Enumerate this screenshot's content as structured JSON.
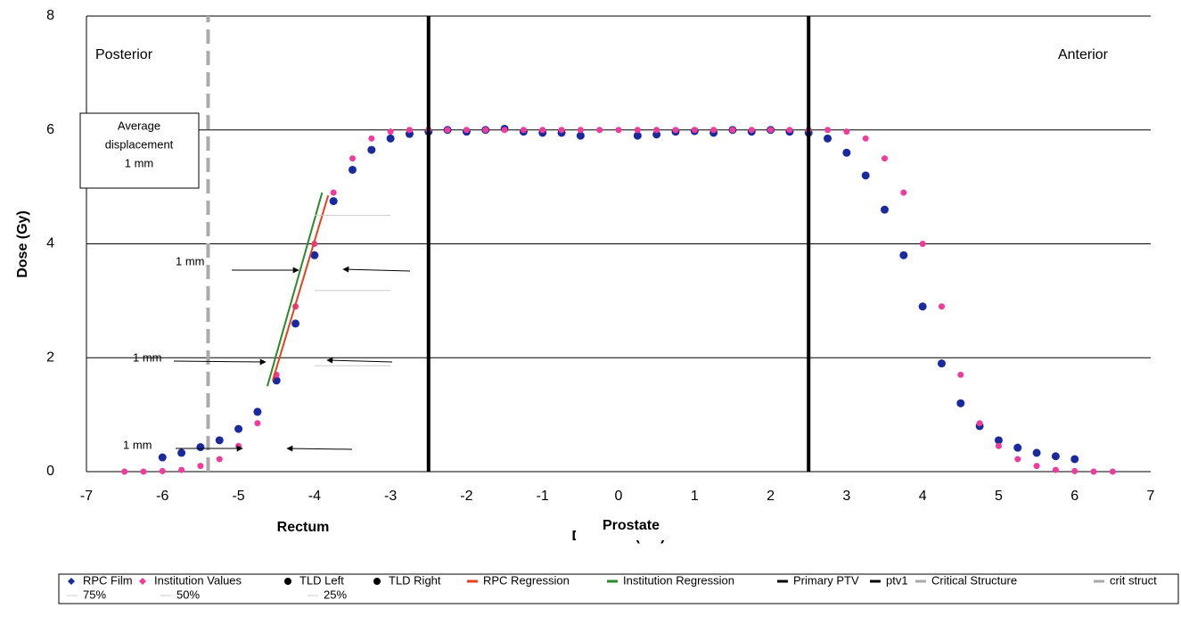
{
  "chart_data": {
    "type": "scatter",
    "xlabel": "Distance (cm)",
    "ylabel": "Dose (Gy)",
    "xlim": [
      -7,
      7
    ],
    "xticks": [
      -7,
      -6,
      -5,
      -4,
      -3,
      -2,
      -1,
      0,
      1,
      2,
      3,
      4,
      5,
      6,
      7
    ],
    "ylim": [
      0,
      8
    ],
    "yticks": [
      0,
      2,
      4,
      6,
      8
    ],
    "grid": true,
    "legend": "bottom",
    "annotations": {
      "posterior": "Posterior",
      "anterior": "Anterior",
      "displacement": [
        "Average",
        "displacement",
        "1 mm"
      ],
      "rectum": "Rectum",
      "prostate": "Prostate",
      "mm": [
        "1 mm",
        "1 mm",
        "1 mm"
      ]
    },
    "x": [
      -6.5,
      -6.25,
      -6,
      -5.75,
      -5.5,
      -5.25,
      -5,
      -4.75,
      -4.5,
      -4.25,
      -4,
      -3.75,
      -3.5,
      -3.25,
      -3,
      -2.75,
      -2.5,
      -2.25,
      -2,
      -1.75,
      -1.5,
      -1.25,
      -1,
      -0.75,
      -0.5,
      -0.25,
      0,
      0.25,
      0.5,
      0.75,
      1,
      1.25,
      1.5,
      1.75,
      2,
      2.25,
      2.5,
      2.75,
      3,
      3.25,
      3.5,
      3.75,
      4,
      4.25,
      4.5,
      4.75,
      5,
      5.25,
      5.5,
      5.75,
      6,
      6.25,
      6.5
    ],
    "series": [
      {
        "name": "RPC Film",
        "color": "#1a2a9e",
        "kind": "points",
        "values": [
          null,
          null,
          0.25,
          0.33,
          0.43,
          0.55,
          0.75,
          1.05,
          1.6,
          2.6,
          3.8,
          4.75,
          5.3,
          5.65,
          5.85,
          5.93,
          5.97,
          6.0,
          5.97,
          6.0,
          6.02,
          5.97,
          5.95,
          5.95,
          5.9,
          null,
          null,
          5.9,
          5.92,
          5.97,
          5.98,
          5.95,
          6.0,
          5.97,
          6.0,
          5.97,
          5.95,
          5.85,
          5.6,
          5.2,
          4.6,
          3.8,
          2.9,
          1.9,
          1.2,
          0.8,
          0.55,
          0.42,
          0.33,
          0.27,
          0.22,
          null,
          null
        ]
      },
      {
        "name": "Institution Values",
        "color": "#ee3c9c",
        "kind": "points",
        "values": [
          0,
          0,
          0.01,
          0.03,
          0.1,
          0.22,
          0.45,
          0.85,
          1.7,
          2.9,
          4.0,
          4.9,
          5.5,
          5.85,
          5.97,
          6.0,
          6.0,
          6.0,
          6.0,
          6.0,
          6.0,
          6.0,
          6.0,
          6.0,
          6.0,
          6.0,
          6.0,
          6.0,
          6.0,
          6.0,
          6.0,
          6.0,
          6.0,
          6.0,
          6.0,
          6.0,
          6.0,
          6.0,
          5.97,
          5.85,
          5.5,
          4.9,
          4.0,
          2.9,
          1.7,
          0.85,
          0.45,
          0.22,
          0.1,
          0.03,
          0.01,
          0,
          0
        ]
      },
      {
        "name": "TLD Left",
        "color": "#000000",
        "kind": "points"
      },
      {
        "name": "TLD Right",
        "color": "#000000",
        "kind": "points"
      },
      {
        "name": "RPC Regression",
        "color": "#e8401c",
        "kind": "line",
        "x": [
          -4.55,
          -3.82
        ],
        "values": [
          1.6,
          4.85
        ]
      },
      {
        "name": "Institution Regression",
        "color": "#2a8a2a",
        "kind": "line",
        "x": [
          -4.62,
          -3.9
        ],
        "values": [
          1.5,
          4.9
        ]
      },
      {
        "name": "Primary PTV",
        "color": "#000000",
        "kind": "line",
        "width": 4,
        "x": [
          -2.5,
          -2.5
        ],
        "values": [
          0,
          8
        ]
      },
      {
        "name": "ptv1",
        "color": "#000000",
        "kind": "line",
        "width": 4,
        "x": [
          2.5,
          2.5
        ],
        "values": [
          0,
          8
        ]
      },
      {
        "name": "Critical Structure",
        "color": "#aaaaaa",
        "kind": "line"
      },
      {
        "name": "crit struct",
        "color": "#aaaaaa",
        "kind": "line",
        "width": 4,
        "dashed": true,
        "x": [
          -5.4,
          -5.4
        ],
        "values": [
          0,
          8
        ]
      },
      {
        "name": "75%",
        "color": "#cccccc",
        "kind": "line",
        "width": 1,
        "x": [
          -4.0,
          -3.0
        ],
        "values": [
          4.5,
          4.5
        ]
      },
      {
        "name": "50%",
        "color": "#cccccc",
        "kind": "line",
        "width": 1,
        "x": [
          -4.0,
          -3.0
        ],
        "values": [
          3.18,
          3.18
        ]
      },
      {
        "name": "25%",
        "color": "#cccccc",
        "kind": "line",
        "width": 1,
        "x": [
          -4.0,
          -3.0
        ],
        "values": [
          1.86,
          1.86
        ]
      }
    ]
  }
}
